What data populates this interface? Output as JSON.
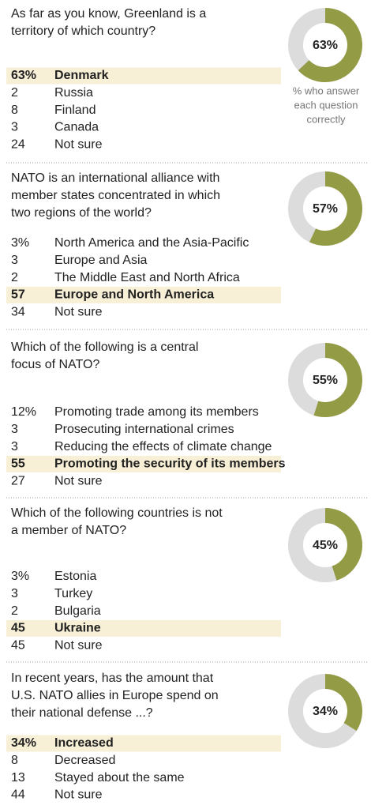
{
  "questions": [
    {
      "question": [
        "As far as you know, Greenland is a",
        "territory of which country?"
      ],
      "donut": {
        "value": 63,
        "label": "63%"
      },
      "correct": 0,
      "answers": [
        [
          "63%",
          "Denmark"
        ],
        [
          "2",
          "Russia"
        ],
        [
          "8",
          "Finland"
        ],
        [
          "3",
          "Canada"
        ],
        [
          "24",
          "Not sure"
        ]
      ]
    },
    {
      "question": [
        "NATO is an international alliance with",
        "member states concentrated in which",
        "two regions of the world?"
      ],
      "donut": {
        "value": 57,
        "label": "57%"
      },
      "correct": 3,
      "answers": [
        [
          "3%",
          "North America and the Asia-Pacific"
        ],
        [
          "3",
          "Europe and Asia"
        ],
        [
          "2",
          "The Middle East and North Africa"
        ],
        [
          "57",
          "Europe and North America"
        ],
        [
          "34",
          "Not sure"
        ]
      ]
    },
    {
      "question": [
        "Which of the following is a central",
        "focus of NATO?"
      ],
      "donut": {
        "value": 55,
        "label": "55%"
      },
      "correct": 3,
      "answers": [
        [
          "12%",
          "Promoting trade among its members"
        ],
        [
          "3",
          "Prosecuting international crimes"
        ],
        [
          "3",
          "Reducing the effects of climate change"
        ],
        [
          "55",
          "Promoting the security of its members"
        ],
        [
          "27",
          "Not sure"
        ]
      ]
    },
    {
      "question": [
        "Which of the following countries is not",
        "a member of NATO?"
      ],
      "donut": {
        "value": 45,
        "label": "45%"
      },
      "correct": 3,
      "answers": [
        [
          "3%",
          "Estonia"
        ],
        [
          "3",
          "Turkey"
        ],
        [
          "2",
          "Bulgaria"
        ],
        [
          "45",
          "Ukraine"
        ],
        [
          "45",
          "Not sure"
        ]
      ]
    },
    {
      "question": [
        "In recent years, has the amount that",
        "U.S. NATO allies in Europe spend on",
        "their national defense ...?"
      ],
      "donut": {
        "value": 34,
        "label": "34%"
      },
      "correct": 0,
      "answers": [
        [
          "34%",
          "Increased"
        ],
        [
          "8",
          "Decreased"
        ],
        [
          "13",
          "Stayed about the same"
        ],
        [
          "44",
          "Not sure"
        ]
      ]
    }
  ],
  "note": [
    "% who answer",
    "each question",
    "correctly"
  ],
  "colors": {
    "correct": "#949b45",
    "rest": "#dcdcdc",
    "highlight": "#f7efd6"
  }
}
